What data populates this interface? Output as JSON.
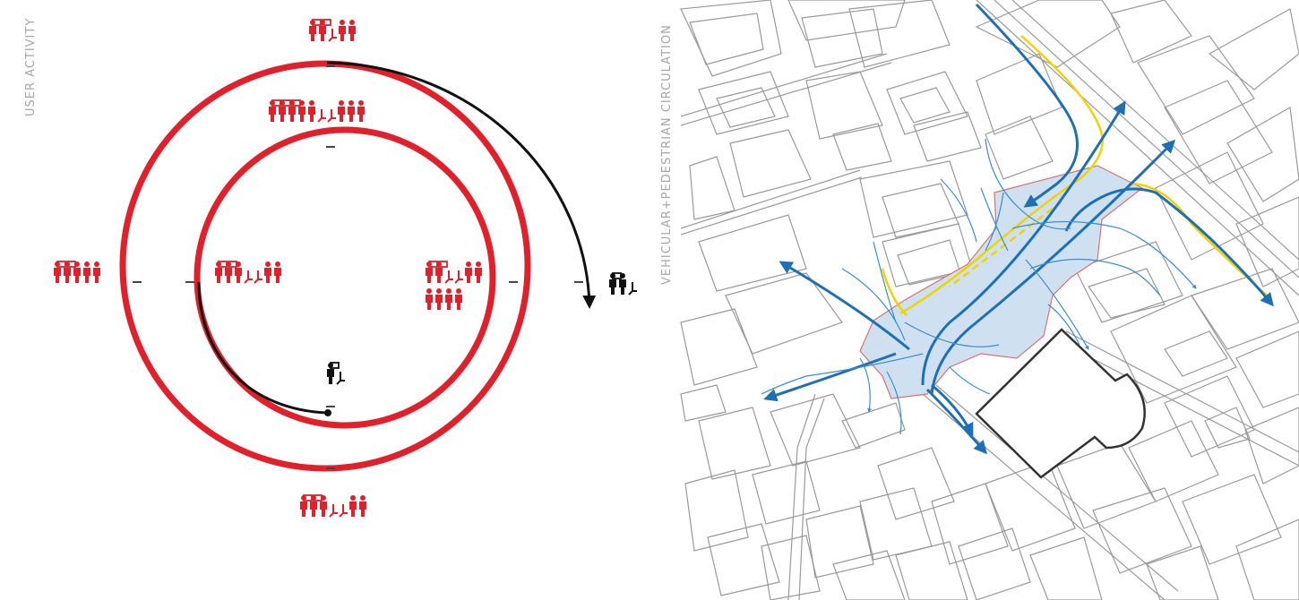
{
  "user_activity": {
    "title": "USER ACTIVITY",
    "colors": {
      "ring": "#e0202a",
      "arc": "#111111",
      "people": "#e0202a",
      "people_dark": "#111111"
    },
    "clusters": [
      {
        "id": "top-outer",
        "icons": [
          "screen",
          "screen",
          "person",
          "person",
          "person-sitting",
          "person",
          "person"
        ]
      },
      {
        "id": "top-inner",
        "icons": [
          "screen",
          "screen",
          "screen",
          "person",
          "person",
          "person",
          "person",
          "person",
          "person-sitting",
          "person-sitting",
          "person",
          "person",
          "person"
        ]
      },
      {
        "id": "left-outer",
        "icons": [
          "screen",
          "screen",
          "person",
          "person",
          "person",
          "person",
          "person"
        ]
      },
      {
        "id": "left-inner",
        "icons": [
          "screen",
          "screen",
          "person",
          "person",
          "person",
          "person-sitting",
          "person-sitting",
          "person",
          "person"
        ]
      },
      {
        "id": "right-inner",
        "icons": [
          "screen",
          "screen",
          "person",
          "person",
          "person-sitting",
          "person-sitting",
          "person",
          "person",
          "person",
          "person",
          "person",
          "person"
        ]
      },
      {
        "id": "bottom-outer",
        "icons": [
          "screen",
          "screen",
          "person",
          "person",
          "person",
          "person-sitting",
          "person-sitting",
          "person",
          "person"
        ]
      },
      {
        "id": "right-dark",
        "icons": [
          "screen",
          "person",
          "person",
          "person-sitting"
        ]
      },
      {
        "id": "center-dark",
        "icons": [
          "screen",
          "person",
          "person-sitting"
        ]
      }
    ]
  },
  "circulation": {
    "title": "VEHICULAR+PEDESTRIAN CIRCULATION",
    "colors": {
      "vehicular": "#1f6fb5",
      "pedestrian": "#3c8dc9",
      "transit": "#f0d200",
      "plaza_fill": "#cfe1f1",
      "plaza_edge": "#d8736f",
      "building_lines": "#9a9a9a",
      "landmark": "#333333"
    }
  }
}
